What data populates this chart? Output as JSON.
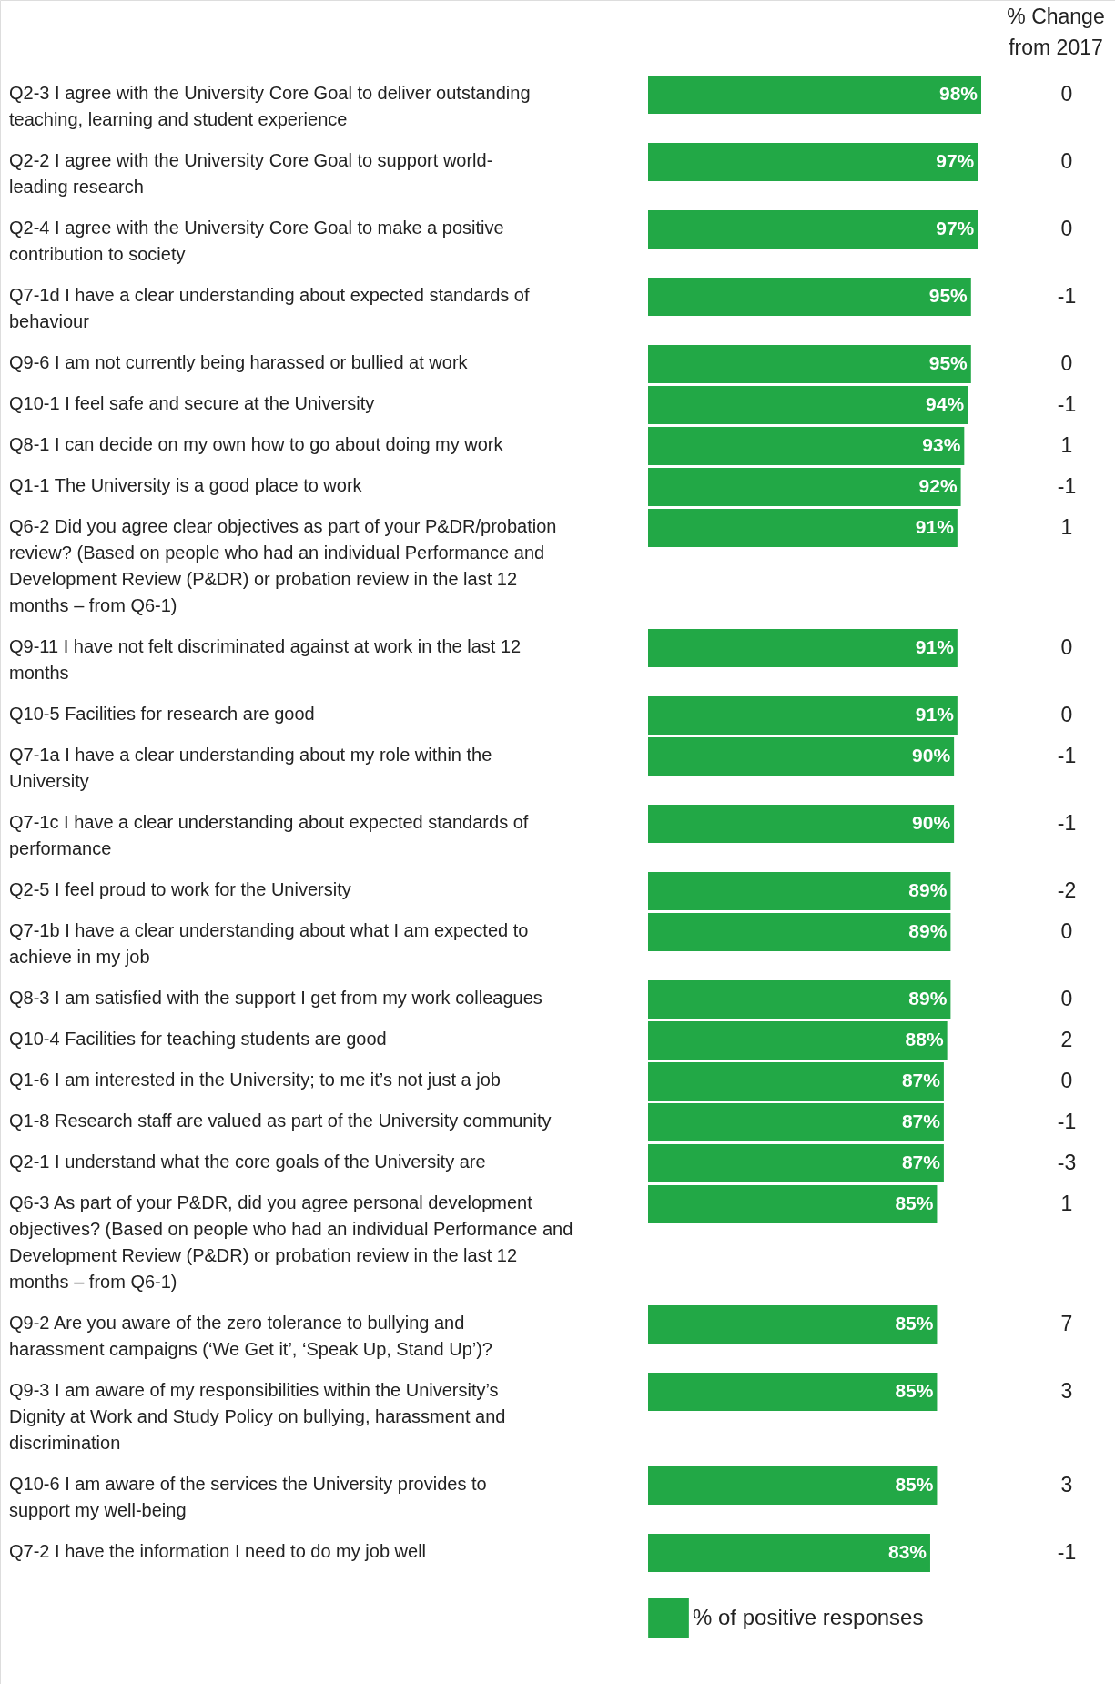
{
  "chart_data": {
    "type": "bar",
    "orientation": "horizontal",
    "legend": "bottom",
    "categories": [
      "Q2-3 I agree with the University Core Goal to deliver outstanding teaching, learning and student experience",
      "Q2-2 I agree with the University Core Goal to support world-leading research",
      "Q2-4 I agree with the University Core Goal to make a positive contribution to society",
      "Q7-1d I have a clear understanding about expected standards of behaviour",
      "Q9-6 I am not currently being harassed or bullied at work",
      "Q10-1 I feel safe and secure at the University",
      "Q8-1 I can decide on my own how to go about doing my work",
      "Q1-1 The University is a good place to work",
      "Q6-2 Did you agree clear objectives as part of your P&DR/probation review? (Based on people who had an individual Performance and Development Review (P&DR) or probation review in the last 12 months – from Q6-1)",
      "Q9-11 I have not felt discriminated against at work in the last 12 months",
      "Q10-5 Facilities for research are good",
      "Q7-1a I have a clear understanding about my role within the University",
      "Q7-1c I have a clear understanding about expected standards of performance",
      "Q2-5 I feel proud to work for the University",
      "Q7-1b I have a clear understanding about what I am expected to achieve in my job",
      "Q8-3 I am satisfied with the support I get from my work colleagues",
      "Q10-4 Facilities for teaching students are good",
      "Q1-6 I am interested in the University; to me it’s not just a job",
      "Q1-8 Research staff are valued as part of the University community",
      "Q2-1 I understand what the core goals of the University are",
      "Q6-3 As part of your P&DR, did you agree personal development objectives? (Based on people who had an individual Performance and Development Review (P&DR) or probation review in the last 12 months – from Q6-1)",
      "Q9-2 Are you aware of the zero tolerance to bullying and harassment campaigns (‘We Get it’, ‘Speak Up, Stand Up’)?",
      "Q9-3 I am aware of my responsibilities within the University’s Dignity at Work and Study Policy on bullying, harassment and discrimination",
      "Q10-6 I am aware of the services the University provides to support my well-being",
      "Q7-2 I have the information I need to do my job well"
    ],
    "series": [
      {
        "name": "% of positive responses",
        "type": "bar",
        "color": "#22a846",
        "values": [
          98,
          97,
          97,
          95,
          95,
          94,
          93,
          92,
          91,
          91,
          91,
          90,
          90,
          89,
          89,
          89,
          88,
          87,
          87,
          87,
          85,
          85,
          85,
          85,
          83
        ],
        "value_labels": [
          "98%",
          "97%",
          "97%",
          "95%",
          "95%",
          "94%",
          "93%",
          "92%",
          "91%",
          "91%",
          "91%",
          "90%",
          "90%",
          "89%",
          "89%",
          "89%",
          "88%",
          "87%",
          "87%",
          "87%",
          "85%",
          "85%",
          "85%",
          "85%",
          "83%"
        ]
      }
    ],
    "annotations": [
      "% Change from 2017",
      "0",
      "0",
      "0",
      "-1",
      "0",
      "-1",
      "1",
      "-1",
      "1",
      "0",
      "0",
      "-1",
      "-1",
      "-2",
      "0",
      "0",
      "2",
      "0",
      "-1",
      "-3",
      "1",
      "7",
      "3",
      "3",
      "-1"
    ]
  }
}
